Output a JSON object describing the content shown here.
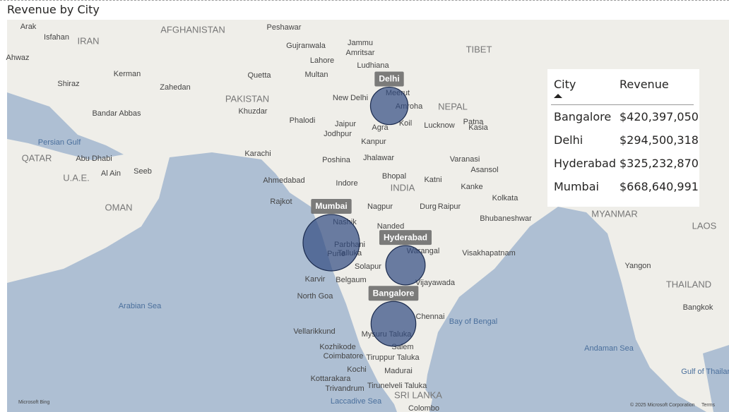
{
  "header": {
    "title": "Revenue by City"
  },
  "map": {
    "points": [
      {
        "label": "Delhi",
        "revenue": 294500318
      },
      {
        "label": "Mumbai",
        "revenue": 668640991
      },
      {
        "label": "Hyderabad",
        "revenue": 325232870
      },
      {
        "label": "Bangalore",
        "revenue": 420397050
      }
    ],
    "places": [
      "Arak",
      "Isfahan",
      "IRAN",
      "Ahwaz",
      "Shiraz",
      "Kerman",
      "Zahedan",
      "AFGHANISTAN",
      "Peshawar",
      "Gujranwala",
      "Jammu",
      "Lahore",
      "Amritsar",
      "Ludhiana",
      "TIBET",
      "Quetta",
      "Multan",
      "PAKISTAN",
      "Khuzdar",
      "Bandar Abbas",
      "Persian Gulf",
      "QATAR",
      "Abu Dhabi",
      "U.A.E.",
      "Al Ain",
      "Seeb",
      "OMAN",
      "Karachi",
      "Phalodi",
      "Jodhpur",
      "Jaipur",
      "New Delhi",
      "Meerut",
      "Amroha",
      "NEPAL",
      "Agra",
      "Koil",
      "Lucknow",
      "Kasia",
      "Kanpur",
      "Patna",
      "Poshina",
      "Jhalawar",
      "Varanasi",
      "Asansol",
      "Ahmedabad",
      "Indore",
      "Bhopal",
      "INDIA",
      "Katni",
      "Kanke",
      "Kolkata",
      "Rajkot",
      "Nagpur",
      "Durg",
      "Raipur",
      "Bhubaneshwar",
      "MYANMAR",
      "Nashik",
      "Nanded",
      "Parbhani",
      "Warangal",
      "Visakhapatnam",
      "Pune",
      "Talluka",
      "Solapur",
      "Vijayawada",
      "Yangon",
      "LAOS",
      "THAILAND",
      "Bangkok",
      "Karvir",
      "Belgaum",
      "North Goa",
      "Arabian Sea",
      "Bay of Bengal",
      "Chennai",
      "Vellarikkund",
      "Mysuru Taluka",
      "Kozhikode",
      "Salem",
      "Coimbatore",
      "Tiruppur Taluka",
      "Kochi",
      "Madurai",
      "Kottarakara",
      "Trivandrum",
      "Tirunelveli Taluka",
      "SRI LANKA",
      "Colombo",
      "Andaman Sea",
      "Gulf of Thailand",
      "Laccadive Sea",
      "Microsoft Bing",
      "© 2025 Microsoft Corporation",
      "Terms"
    ]
  },
  "table": {
    "columns": [
      "City",
      "Revenue"
    ],
    "rows": [
      [
        "Bangalore",
        "$420,397,050"
      ],
      [
        "Delhi",
        "$294,500,318"
      ],
      [
        "Hyderabad",
        "$325,232,870"
      ],
      [
        "Mumbai",
        "$668,640,991"
      ]
    ]
  }
}
